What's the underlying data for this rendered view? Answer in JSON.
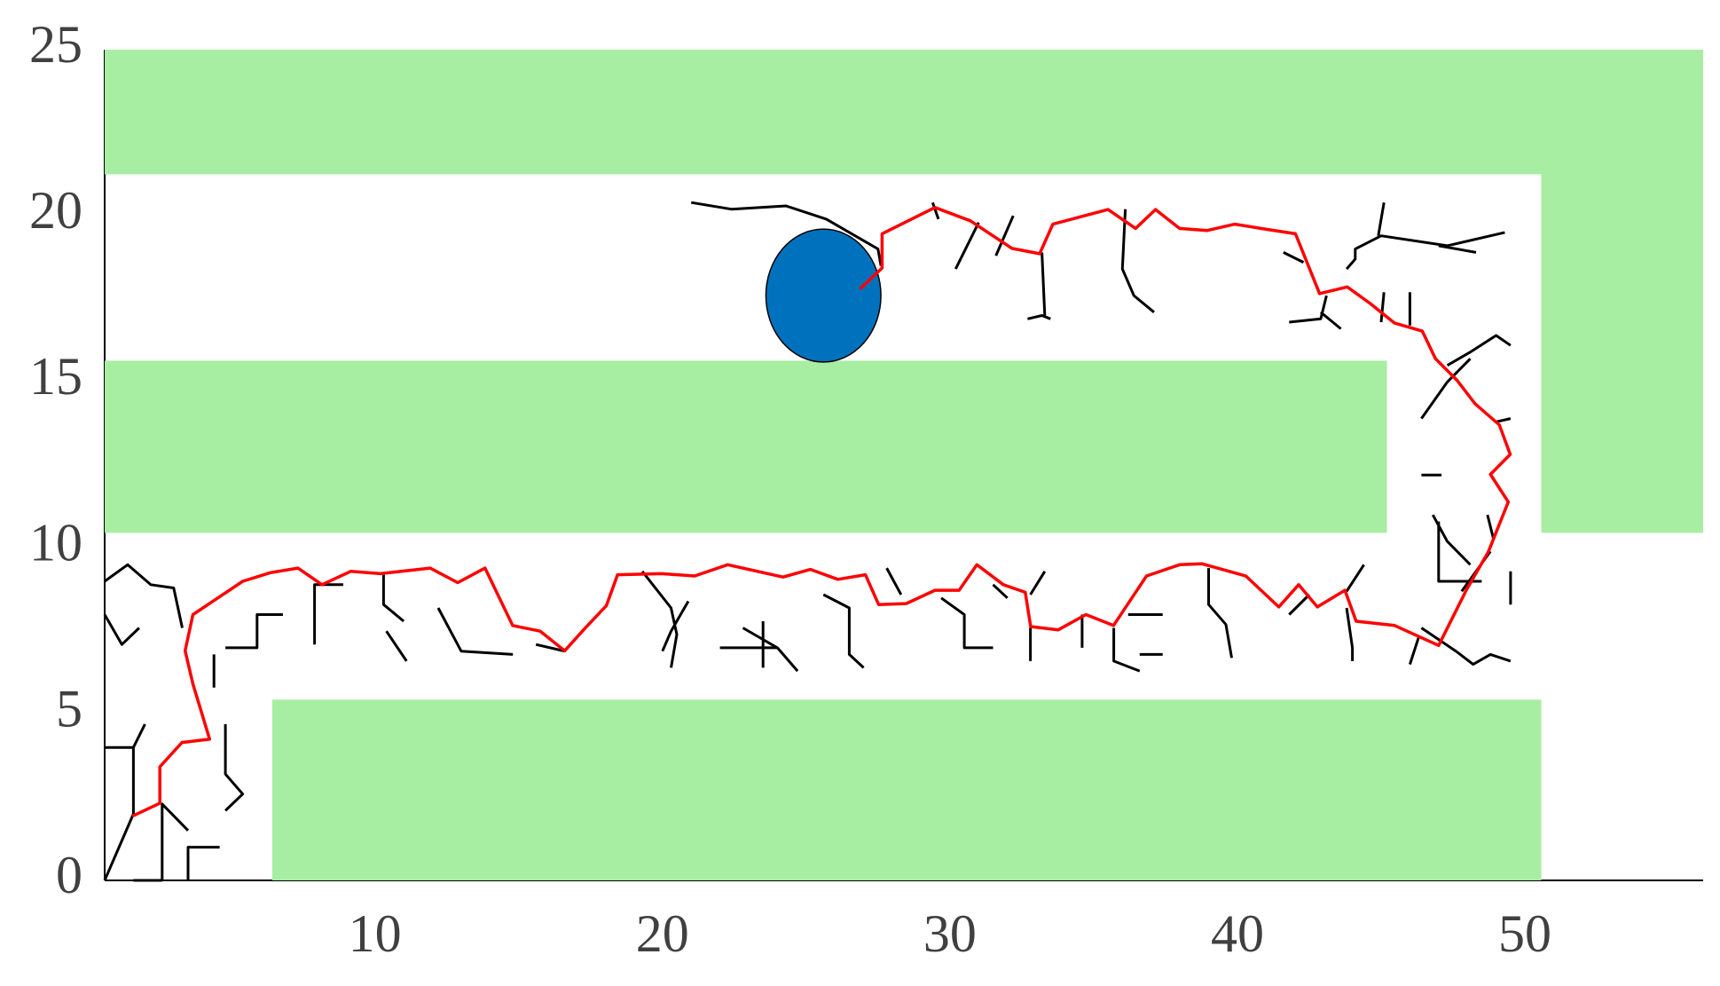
{
  "chart_data": {
    "type": "line",
    "xlim": [
      0.6,
      56.2
    ],
    "ylim": [
      0,
      25
    ],
    "xticks": [
      10,
      20,
      30,
      40,
      50
    ],
    "yticks": [
      0,
      5,
      10,
      15,
      20,
      25
    ],
    "grid": false,
    "obstacle_color": "#a7eea2",
    "obstacles": [
      {
        "x": [
          0.6,
          56.2
        ],
        "y": [
          21.25,
          25
        ]
      },
      {
        "x": [
          50.57,
          56.2
        ],
        "y": [
          10.46,
          25
        ]
      },
      {
        "x": [
          0.6,
          45.2
        ],
        "y": [
          10.46,
          15.64
        ]
      },
      {
        "x": [
          6.43,
          50.57
        ],
        "y": [
          0,
          5.44
        ]
      }
    ],
    "circle": {
      "x": 25.6,
      "y": 17.6,
      "r": 2,
      "color": "#0072bd"
    },
    "series": [
      {
        "color": "#000000",
        "x": [
          0.6,
          1.6,
          1.6,
          null,
          1.6,
          2.6,
          null,
          2.6,
          2.6,
          3.5,
          null,
          3.5,
          3.5,
          4.6,
          null,
          0.6,
          1.6,
          2.0,
          null,
          4.8,
          4.8,
          5.4,
          4.8,
          null,
          4.4,
          4.4,
          null,
          0.6,
          1.4,
          2.2,
          3.0,
          3.3,
          null,
          0.6,
          1.2,
          1.8,
          null,
          4.8,
          5.9,
          5.9,
          6.8,
          null,
          7.9,
          7.9,
          8.9,
          null,
          10.3,
          10.3,
          11.0,
          null,
          10.4,
          11.1,
          null,
          12.2,
          13.0,
          14.8,
          null,
          15.6,
          16.6,
          null,
          20.0,
          20.3,
          20.9,
          null,
          19.3,
          20.3,
          20.5,
          20.3,
          null,
          22.0,
          24.0,
          null,
          23.5,
          23.5,
          null,
          22.8,
          24.0,
          24.7,
          null,
          25.6,
          26.5,
          26.5,
          27.0,
          null,
          27.8,
          28.3,
          null,
          29.7,
          30.5,
          30.5,
          31.5,
          null,
          31.5,
          32.0,
          null,
          33.3,
          32.8,
          null,
          32.8,
          32.8,
          null,
          34.6,
          34.6,
          null,
          35.7,
          35.7,
          36.6,
          null,
          36.6,
          37.4,
          null,
          37.4,
          36.2,
          null,
          39.0,
          39.0,
          39.6,
          39.8,
          null,
          41.8,
          42.5,
          null,
          43.8,
          44.0,
          44.0,
          null,
          44.4,
          43.8,
          null,
          47.0,
          47.0,
          48.5,
          null,
          46.4,
          47.6,
          48.2,
          48.8,
          49.5,
          null,
          46.0,
          46.3,
          null,
          49.5,
          49.5,
          null,
          47.8,
          48.8,
          null,
          46.8,
          47.3,
          48.1,
          null,
          46.4,
          47.1,
          null,
          48.7,
          48.9,
          null,
          46.4,
          47.3,
          48.1,
          null,
          47.3,
          48.1,
          49.0,
          49.5,
          null,
          49.0,
          49.5,
          null,
          45.0,
          45.1,
          null,
          46.0,
          46.0,
          null,
          41.8,
          42.9,
          43.1,
          null,
          43.6,
          42.9,
          null,
          42.3,
          41.6,
          null,
          43.8,
          44.1,
          44.1,
          45.0,
          47.3,
          49.3,
          null,
          44.9,
          45.1,
          null,
          47.0,
          48.3,
          null,
          36.1,
          36.0,
          36.4,
          37.1,
          null,
          32.7,
          33.2,
          33.5,
          null,
          33.2,
          33.3,
          null,
          30.2,
          31.0,
          null,
          31.6,
          32.2,
          null,
          29.6,
          29.4,
          null,
          21.0,
          22.4,
          24.3,
          25.7,
          27.5,
          27.6
        ],
        "y": [
          0,
          2,
          4,
          null,
          0,
          0,
          null,
          0,
          2.3,
          1.5,
          null,
          0,
          1,
          1,
          null,
          4,
          4,
          4.7,
          null,
          4.7,
          3.2,
          2.6,
          2.1,
          null,
          6.8,
          5.8,
          null,
          9,
          9.5,
          8.9,
          8.8,
          7.6,
          null,
          8,
          7.1,
          7.6,
          null,
          7.0,
          7.0,
          8.0,
          8.0,
          null,
          7.1,
          8.9,
          8.9,
          null,
          9.2,
          8.3,
          7.8,
          null,
          7.5,
          6.6,
          null,
          8.2,
          6.9,
          6.8,
          null,
          7.1,
          6.9,
          null,
          6.9,
          7.5,
          8.4,
          null,
          9.3,
          8.2,
          7.4,
          6.4,
          null,
          7.0,
          7.0,
          null,
          7.8,
          6.4,
          null,
          7.6,
          7.0,
          6.3,
          null,
          8.6,
          8.2,
          6.8,
          6.4,
          null,
          9.4,
          8.6,
          null,
          8.5,
          8.0,
          7.0,
          7.0,
          null,
          8.9,
          8.5,
          null,
          9.3,
          8.6,
          null,
          7.6,
          6.6,
          null,
          8.0,
          7.0,
          null,
          7.6,
          6.6,
          6.3,
          null,
          6.8,
          6.8,
          null,
          8.0,
          8.0,
          null,
          9.4,
          8.3,
          7.7,
          6.7,
          null,
          8.0,
          8.6,
          null,
          8.2,
          7.0,
          6.6,
          null,
          9.5,
          8.7,
          null,
          10.8,
          9.0,
          9.0,
          null,
          7.6,
          6.9,
          6.5,
          6.8,
          6.6,
          null,
          6.5,
          7.3,
          null,
          9.3,
          8.3,
          null,
          8.7,
          9.9,
          null,
          11.0,
          10.2,
          9.5,
          null,
          12.2,
          12.2,
          null,
          11.0,
          10.3,
          null,
          13.9,
          15.0,
          15.7,
          null,
          15.5,
          15.9,
          16.4,
          16.1,
          null,
          13.8,
          13.9,
          null,
          16.8,
          17.7,
          null,
          16.7,
          17.7,
          null,
          16.8,
          16.9,
          17.6,
          null,
          16.6,
          17.1,
          null,
          18.6,
          18.9,
          null,
          18.4,
          18.7,
          19.0,
          19.4,
          19.1,
          19.5,
          null,
          19.4,
          20.4,
          null,
          19.1,
          18.9,
          null,
          20.2,
          18.4,
          17.6,
          17.1,
          null,
          16.9,
          17.0,
          16.9,
          null,
          18.9,
          17.0,
          null,
          18.4,
          19.8,
          null,
          18.8,
          20.0,
          null,
          19.9,
          20.4,
          null,
          20.4,
          20.2,
          20.3,
          19.9,
          19.0,
          18.5
        ]
      },
      {
        "color": "#ff0000",
        "x": [
          1.56,
          2.52,
          2.52,
          3.29,
          4.25,
          3.67,
          3.4,
          3.67,
          5.4,
          6.36,
          7.32,
          8.16,
          9.16,
          10.19,
          11.92,
          12.88,
          13.83,
          14.79,
          15.75,
          16.6,
          17.29,
          18.05,
          18.44,
          19.97,
          21.12,
          22.27,
          24.19,
          25.15,
          26.1,
          27.06,
          27.52,
          28.48,
          29.48,
          30.32,
          30.94,
          31.86,
          32.62,
          32.81,
          33.77,
          34.73,
          35.69,
          36.84,
          37.99,
          38.76,
          40.29,
          41.44,
          42.13,
          42.78,
          43.74,
          44.13,
          45.47,
          47.0,
          47.96,
          48.73,
          49.42,
          48.8,
          49.49,
          49.11,
          48.27,
          47.65,
          46.89,
          46.43,
          45.47,
          44.62,
          43.82,
          42.86,
          42.02,
          41.06,
          39.91,
          38.95,
          37.99,
          37.15,
          36.46,
          35.5,
          33.58,
          33.12,
          32.16,
          30.71,
          29.48,
          27.64,
          27.64,
          26.87
        ],
        "y": [
          1.93,
          2.32,
          3.42,
          4.15,
          4.25,
          5.91,
          6.91,
          8.0,
          9.0,
          9.26,
          9.4,
          8.9,
          9.3,
          9.23,
          9.4,
          8.96,
          9.4,
          7.67,
          7.5,
          6.91,
          7.57,
          8.27,
          9.2,
          9.23,
          9.16,
          9.5,
          9.13,
          9.36,
          9.06,
          9.2,
          8.3,
          8.33,
          8.73,
          8.73,
          9.5,
          8.9,
          8.67,
          7.64,
          7.54,
          8.0,
          7.67,
          9.16,
          9.5,
          9.53,
          9.16,
          8.23,
          8.9,
          8.23,
          8.73,
          7.8,
          7.67,
          7.07,
          8.73,
          9.89,
          11.39,
          12.22,
          12.82,
          13.71,
          14.34,
          15.04,
          15.7,
          16.53,
          16.77,
          17.36,
          17.86,
          17.66,
          19.46,
          19.59,
          19.75,
          19.56,
          19.62,
          20.19,
          19.62,
          20.19,
          19.75,
          18.86,
          19.02,
          19.85,
          20.25,
          19.46,
          18.43,
          17.8
        ]
      }
    ]
  }
}
